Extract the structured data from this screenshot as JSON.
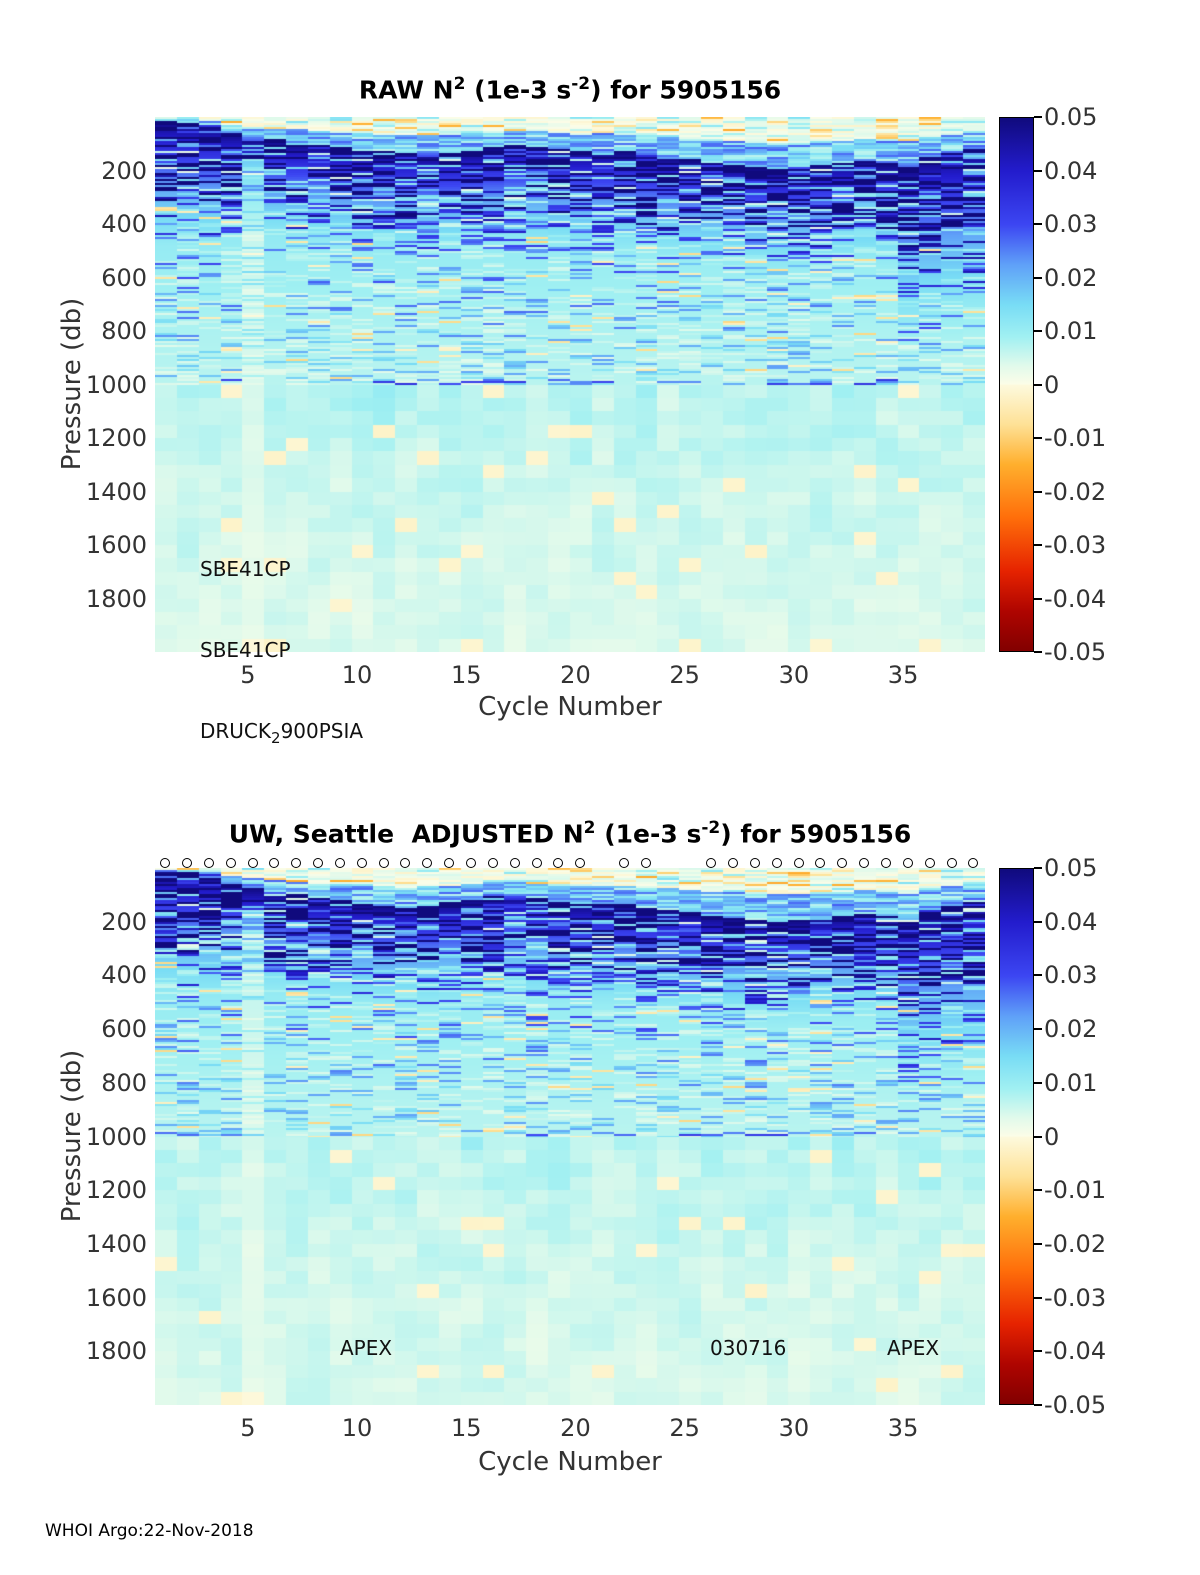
{
  "figure": {
    "footer": "WHOI Argo:22-Nov-2018",
    "float_id": "5905156",
    "background": "#ffffff"
  },
  "colormap": {
    "positive_stops": [
      [
        0,
        [
          252,
          253,
          232
        ]
      ],
      [
        0.07,
        [
          225,
          250,
          235
        ]
      ],
      [
        0.18,
        [
          160,
          240,
          242
        ]
      ],
      [
        0.3,
        [
          120,
          220,
          245
        ]
      ],
      [
        0.45,
        [
          95,
          160,
          248
        ]
      ],
      [
        0.6,
        [
          60,
          70,
          242
        ]
      ],
      [
        0.8,
        [
          35,
          28,
          205
        ]
      ],
      [
        1,
        [
          16,
          10,
          125
        ]
      ]
    ],
    "negative_stops": [
      [
        0,
        [
          253,
          250,
          222
        ]
      ],
      [
        0.15,
        [
          254,
          225,
          150
        ]
      ],
      [
        0.3,
        [
          255,
          175,
          45
        ]
      ],
      [
        0.5,
        [
          255,
          110,
          10
        ]
      ],
      [
        0.7,
        [
          230,
          35,
          0
        ]
      ],
      [
        0.85,
        [
          175,
          5,
          0
        ]
      ],
      [
        1,
        [
          130,
          0,
          0
        ]
      ]
    ]
  },
  "chart_data": [
    {
      "type": "heatmap",
      "panel": "raw",
      "title": {
        "p1": "RAW N",
        "sup1": "2",
        "p2": " (1e-3 s",
        "sup2": "-2",
        "p3": ") for 5905156"
      },
      "xlabel": "Cycle Number",
      "ylabel": "Pressure (db)",
      "x_ticks": [
        "5",
        "10",
        "15",
        "20",
        "25",
        "30",
        "35"
      ],
      "y_ticks": [
        "200",
        "400",
        "600",
        "800",
        "1000",
        "1200",
        "1400",
        "1600",
        "1800"
      ],
      "x_range_cycles": [
        1,
        38
      ],
      "y_range_db": [
        0,
        2000
      ],
      "colorbar_ticks": [
        "0.05",
        "0.04",
        "0.03",
        "0.02",
        "0.01",
        "0",
        "-0.01",
        "-0.02",
        "-0.03",
        "-0.04",
        "-0.05"
      ],
      "value_range": [
        -0.05,
        0.05
      ],
      "units": "1e-3 s^-2",
      "annotations": [
        "SBE41CP",
        "SBE41CP",
        {
          "p1": "DRUCK",
          "sub": "2",
          "p2": "900PSIA"
        }
      ],
      "n2_profile_typical": {
        "pressure_db": [
          25,
          100,
          200,
          300,
          500,
          800,
          1000,
          1300,
          1600,
          1900
        ],
        "n2_1e3_s2": [
          0.001,
          0.045,
          0.035,
          0.016,
          0.011,
          0.008,
          0.008,
          0.005,
          0.004,
          0.004
        ],
        "note": "dark-blue pycnocline band 100-350 db; pale cyan below 1000 db; sporadic weak negatives (orange streaks) near surface and 300-900 db"
      },
      "pycnocline_top_db_by_cycle": [
        15,
        20,
        30,
        60,
        80,
        85,
        95,
        105,
        115,
        125,
        130,
        135,
        140,
        135,
        125,
        115,
        105,
        110,
        120,
        130,
        125,
        130,
        140,
        150,
        160,
        170,
        180,
        190,
        195,
        190,
        180,
        172,
        165,
        175,
        185,
        150,
        135,
        118
      ],
      "pale_column_cycle": 5,
      "render_seed": 20181122
    },
    {
      "type": "heatmap",
      "panel": "adjusted",
      "title": {
        "p1": "UW, Seattle  ADJUSTED N",
        "sup1": "2",
        "p2": " (1e-3 s",
        "sup2": "-2",
        "p3": ") for 5905156"
      },
      "xlabel": "Cycle Number",
      "ylabel": "Pressure (db)",
      "x_ticks": [
        "5",
        "10",
        "15",
        "20",
        "25",
        "30",
        "35"
      ],
      "y_ticks": [
        "200",
        "400",
        "600",
        "800",
        "1000",
        "1200",
        "1400",
        "1600",
        "1800"
      ],
      "x_range_cycles": [
        1,
        38
      ],
      "y_range_db": [
        0,
        2000
      ],
      "colorbar_ticks": [
        "0.05",
        "0.04",
        "0.03",
        "0.02",
        "0.01",
        "0",
        "-0.01",
        "-0.02",
        "-0.03",
        "-0.04",
        "-0.05"
      ],
      "value_range": [
        -0.05,
        0.05
      ],
      "units": "1e-3 s^-2",
      "annotations": [
        "APEX",
        "030716",
        "APEX"
      ],
      "markers": {
        "symbol": "o",
        "pressure_db": 10,
        "present": [
          1,
          1,
          1,
          1,
          1,
          1,
          1,
          1,
          1,
          1,
          1,
          1,
          1,
          1,
          1,
          1,
          1,
          1,
          1,
          1,
          0,
          1,
          1,
          0,
          0,
          1,
          1,
          1,
          1,
          1,
          1,
          1,
          1,
          1,
          1,
          1,
          1,
          1
        ]
      },
      "n2_profile_typical": {
        "pressure_db": [
          25,
          100,
          200,
          300,
          500,
          800,
          1000,
          1300,
          1600,
          1900
        ],
        "n2_1e3_s2": [
          0.001,
          0.046,
          0.036,
          0.016,
          0.011,
          0.008,
          0.008,
          0.005,
          0.004,
          0.004
        ],
        "note": "same field as raw panel after adjustment; circle markers along top indicate cycles"
      },
      "pycnocline_top_db_by_cycle": [
        12,
        18,
        25,
        55,
        75,
        90,
        100,
        112,
        122,
        132,
        138,
        142,
        140,
        130,
        118,
        108,
        104,
        114,
        126,
        136,
        132,
        136,
        146,
        156,
        166,
        176,
        186,
        196,
        200,
        194,
        184,
        178,
        170,
        182,
        192,
        155,
        140,
        122
      ],
      "pale_column_cycle": 5,
      "render_seed": 5905156
    }
  ]
}
